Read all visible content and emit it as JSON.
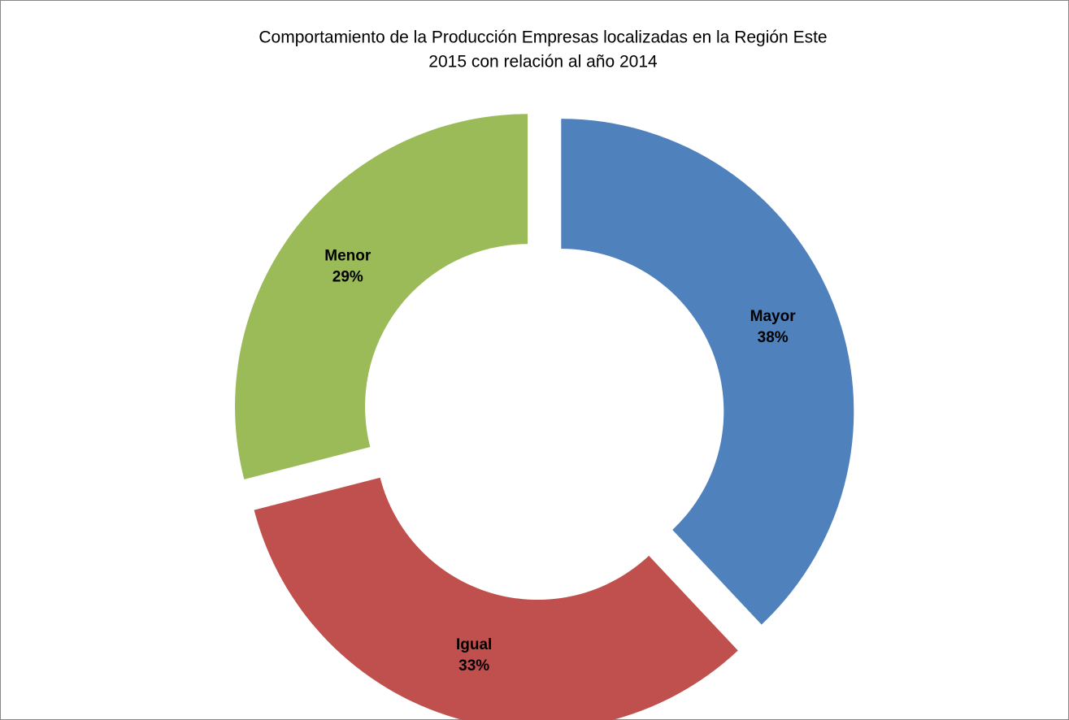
{
  "chart_data": {
    "type": "donut",
    "title": [
      "Comportamiento de la Producción Empresas localizadas en la  Región Este",
      "2015 con relación al año 2014"
    ],
    "categories": [
      "Mayor",
      "Igual",
      "Menor"
    ],
    "values": [
      38,
      33,
      29
    ],
    "value_labels": [
      "38%",
      "33%",
      "29%"
    ],
    "colors": [
      "#4f81bd",
      "#c0504d",
      "#9bbb59"
    ]
  }
}
